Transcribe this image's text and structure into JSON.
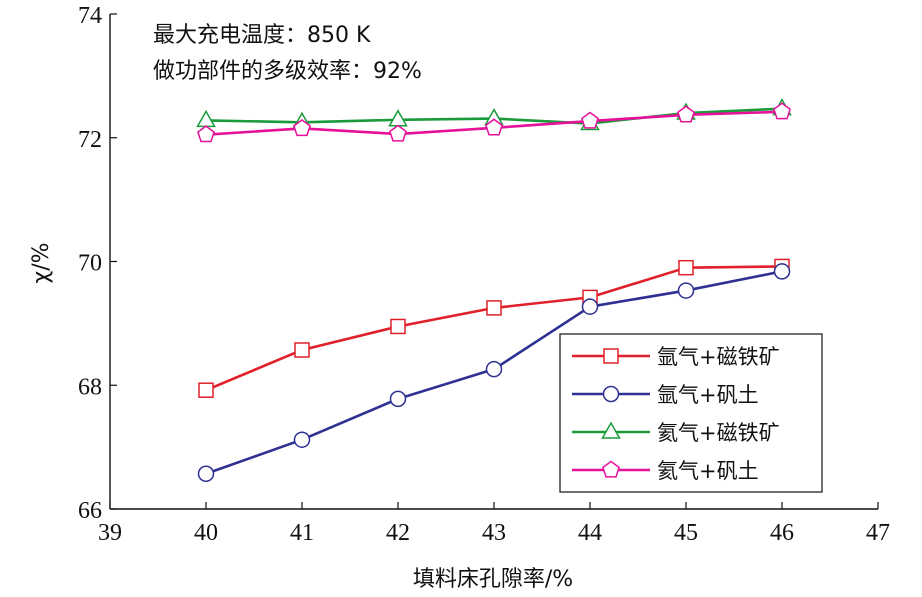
{
  "chart_data": {
    "type": "line",
    "annotations": [
      "最大充电温度：850 K",
      "做功部件的多级效率：92%"
    ],
    "xlabel": "填料床孔隙率/%",
    "ylabel": "χ/%",
    "xlim": [
      39,
      47
    ],
    "ylim": [
      66,
      74
    ],
    "xticks": [
      39,
      40,
      41,
      42,
      43,
      44,
      45,
      46,
      47
    ],
    "yticks": [
      66,
      68,
      70,
      72,
      74
    ],
    "legend_position": "lower-right",
    "x": [
      40,
      41,
      42,
      43,
      44,
      45,
      46
    ],
    "series": [
      {
        "name": "氩气+磁铁矿",
        "color": "#e0202a",
        "marker": "square",
        "values": [
          67.92,
          68.57,
          68.95,
          69.25,
          69.42,
          69.9,
          69.92
        ]
      },
      {
        "name": "氩气+矾土",
        "color": "#2e3192",
        "marker": "circle",
        "values": [
          66.57,
          67.12,
          67.78,
          68.26,
          69.27,
          69.53,
          69.84
        ]
      },
      {
        "name": "氦气+磁铁矿",
        "color": "#1a9a3a",
        "marker": "triangle",
        "values": [
          72.28,
          72.25,
          72.29,
          72.31,
          72.23,
          72.4,
          72.47
        ]
      },
      {
        "name": "氦气+矾土",
        "color": "#e6109a",
        "marker": "pentagon",
        "values": [
          72.05,
          72.15,
          72.06,
          72.16,
          72.27,
          72.37,
          72.42
        ]
      }
    ]
  }
}
